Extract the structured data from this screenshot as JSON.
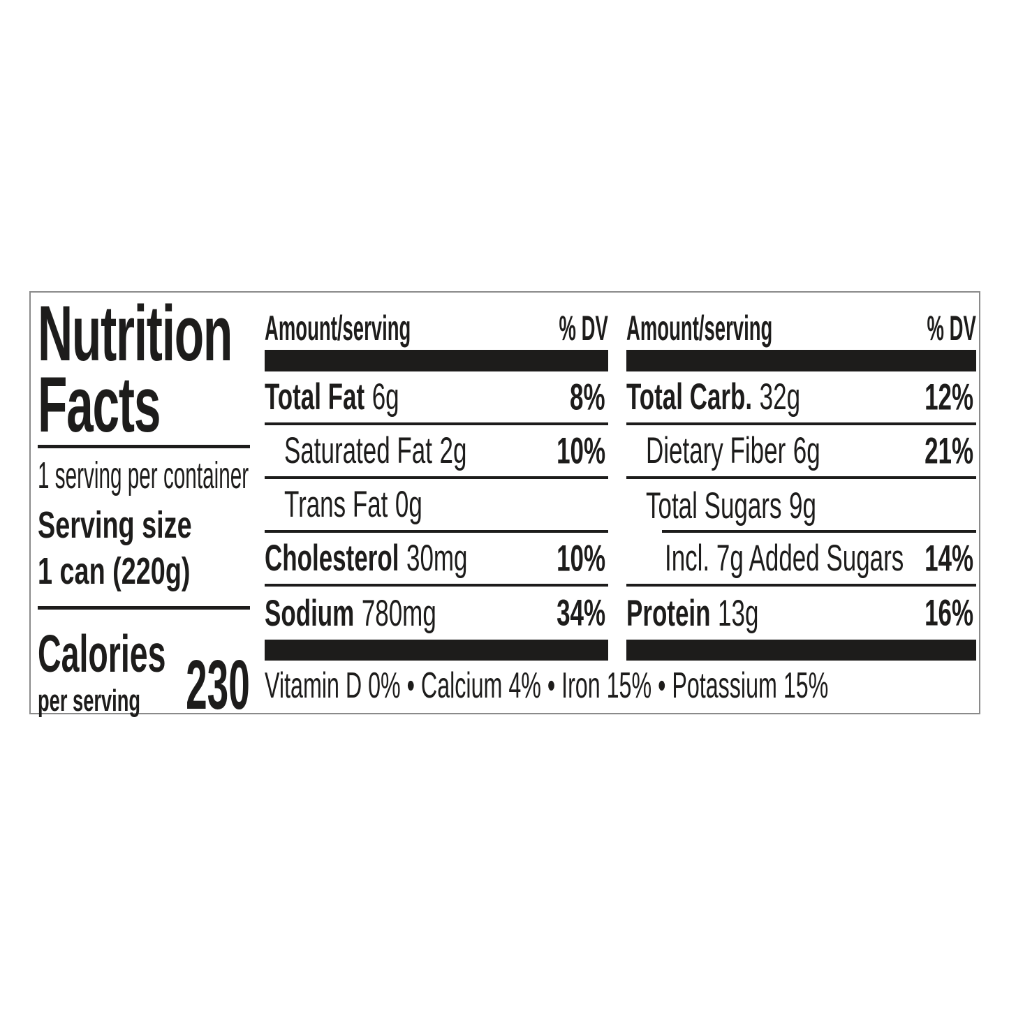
{
  "label": {
    "title": {
      "line1": "Nutrition",
      "line2": "Facts"
    },
    "servings_per_container": "1 serving per container",
    "serving_size": {
      "label": "Serving size",
      "value": "1 can (220g)"
    },
    "calories": {
      "label": "Calories",
      "sublabel": "per serving",
      "value": "230"
    },
    "column_header": {
      "amount": "Amount/serving",
      "dv": "% DV"
    },
    "nutrient_columns": [
      {
        "rows": [
          {
            "name": "Total Fat",
            "amount": "6g",
            "dv": "8%"
          },
          {
            "name": "Saturated Fat",
            "amount": "2g",
            "dv": "10%"
          },
          {
            "name": "Trans Fat",
            "amount": "0g",
            "dv": ""
          },
          {
            "name": "Cholesterol",
            "amount": "30mg",
            "dv": "10%"
          },
          {
            "name": "Sodium",
            "amount": "780mg",
            "dv": "34%"
          }
        ]
      },
      {
        "rows": [
          {
            "name": "Total Carb.",
            "amount": "32g",
            "dv": "12%"
          },
          {
            "name": "Dietary Fiber",
            "amount": "6g",
            "dv": "21%"
          },
          {
            "name": "Total Sugars",
            "amount": "9g",
            "dv": ""
          },
          {
            "name": "Incl. 7g Added Sugars",
            "amount": "",
            "dv": "14%"
          },
          {
            "name": "Protein",
            "amount": "13g",
            "dv": "16%"
          }
        ]
      }
    ],
    "micronutrients": "Vitamin D 0% • Calcium 4% • Iron 15% • Potassium 15%",
    "colors": {
      "text": "#1d1c1b",
      "bar": "#1d1c1b",
      "border": "#8a8a8a",
      "background": "#ffffff"
    }
  }
}
